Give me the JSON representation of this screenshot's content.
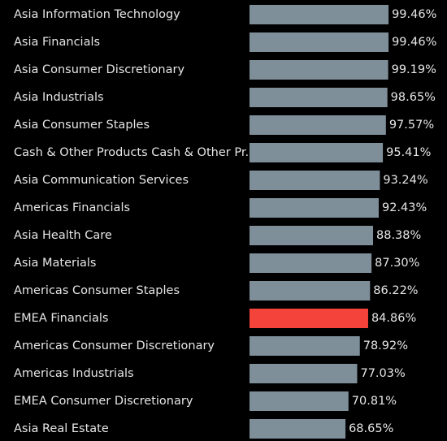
{
  "chart_data": {
    "type": "barh",
    "categories": [
      "Asia Information Technology",
      "Asia Financials",
      "Asia Consumer Discretionary",
      "Asia Industrials",
      "Asia Consumer Staples",
      "Cash & Other Products Cash & Other Pr..",
      "Asia Communication Services",
      "Americas Financials",
      "Asia Health Care",
      "Asia Materials",
      "Americas Consumer Staples",
      "EMEA Financials",
      "Americas Consumer Discretionary",
      "Americas Industrials",
      "EMEA Consumer Discretionary",
      "Asia Real Estate"
    ],
    "values": [
      99.46,
      99.46,
      99.19,
      98.65,
      97.57,
      95.41,
      93.24,
      92.43,
      88.38,
      87.3,
      86.22,
      84.86,
      78.92,
      77.03,
      70.81,
      68.65
    ],
    "value_labels": [
      "99.46%",
      "99.46%",
      "99.19%",
      "98.65%",
      "97.57%",
      "95.41%",
      "93.24%",
      "92.43%",
      "88.38%",
      "87.30%",
      "86.22%",
      "84.86%",
      "78.92%",
      "77.03%",
      "70.81%",
      "68.65%"
    ],
    "colors": [
      "#7f8f9a",
      "#7f8f9a",
      "#7f8f9a",
      "#7f8f9a",
      "#7f8f9a",
      "#7f8f9a",
      "#7f8f9a",
      "#7f8f9a",
      "#7f8f9a",
      "#7f8f9a",
      "#7f8f9a",
      "#f4433a",
      "#7f8f9a",
      "#7f8f9a",
      "#7f8f9a",
      "#7f8f9a"
    ],
    "xlim": [
      0,
      100
    ]
  }
}
